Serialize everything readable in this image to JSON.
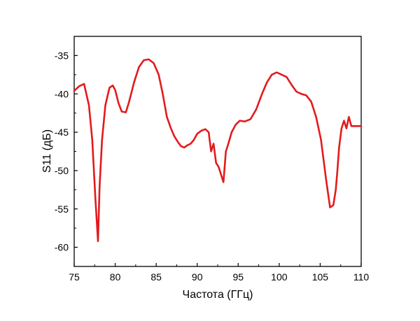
{
  "chart_data": {
    "type": "line",
    "title": "",
    "xlabel": "Частота (ГГц)",
    "ylabel": "S11 (дБ)",
    "xlim": [
      75,
      110
    ],
    "ylim": [
      -62.5,
      -32.5
    ],
    "xticks": [
      75,
      80,
      85,
      90,
      95,
      100,
      105,
      110
    ],
    "yticks": [
      -60,
      -55,
      -50,
      -45,
      -40,
      -35
    ],
    "xtick_labels": [
      "75",
      "80",
      "85",
      "90",
      "95",
      "100",
      "105",
      "110"
    ],
    "ytick_labels": [
      "-60",
      "-55",
      "-50",
      "-45",
      "-40",
      "-35"
    ],
    "grid": false,
    "line_color": "#e31a1c",
    "series": [
      {
        "x": [
          75,
          75.6,
          76.2,
          76.8,
          77.2,
          77.6,
          77.9,
          78.1,
          78.4,
          78.8,
          79.3,
          79.7,
          80,
          80.4,
          80.8,
          81.3,
          81.7,
          82.3,
          82.9,
          83.5,
          84.1,
          84.7,
          85.3,
          85.8,
          86.3,
          86.8,
          87.2,
          87.6,
          88,
          88.4,
          88.8,
          89.2,
          89.6,
          90,
          90.5,
          91,
          91.4,
          91.7,
          92,
          92.3,
          92.6,
          92.9,
          93.2,
          93.5,
          93.8,
          94.2,
          94.7,
          95.2,
          95.8,
          96.5,
          97.2,
          97.9,
          98.5,
          99.1,
          99.7,
          100.3,
          100.9,
          101.5,
          102.1,
          102.7,
          103.3,
          103.9,
          104.5,
          105.1,
          105.7,
          106.2,
          106.6,
          106.9,
          107.1,
          107.3,
          107.6,
          107.9,
          108.2,
          108.5,
          108.8,
          109.1,
          109.5,
          110
        ],
        "y": [
          -39.6,
          -39,
          -38.7,
          -41.5,
          -46,
          -54,
          -59.2,
          -52,
          -46,
          -41.5,
          -39.2,
          -38.9,
          -39.5,
          -41.2,
          -42.3,
          -42.4,
          -41,
          -38.5,
          -36.5,
          -35.6,
          -35.5,
          -36,
          -37.5,
          -40,
          -43,
          -44.5,
          -45.5,
          -46.2,
          -46.8,
          -47,
          -46.7,
          -46.5,
          -46,
          -45.2,
          -44.8,
          -44.6,
          -45,
          -47.5,
          -46.5,
          -49,
          -49.5,
          -50.5,
          -51.5,
          -47.5,
          -46.5,
          -45,
          -44,
          -43.5,
          -43.6,
          -43.3,
          -42,
          -40,
          -38.5,
          -37.5,
          -37.2,
          -37.5,
          -37.8,
          -38.8,
          -39.7,
          -40,
          -40.2,
          -41,
          -43,
          -46,
          -51,
          -54.8,
          -54.5,
          -52.5,
          -50,
          -47,
          -44.5,
          -43.5,
          -44.5,
          -43,
          -44.2,
          -44.2,
          -44.2,
          -44.2
        ]
      }
    ]
  }
}
